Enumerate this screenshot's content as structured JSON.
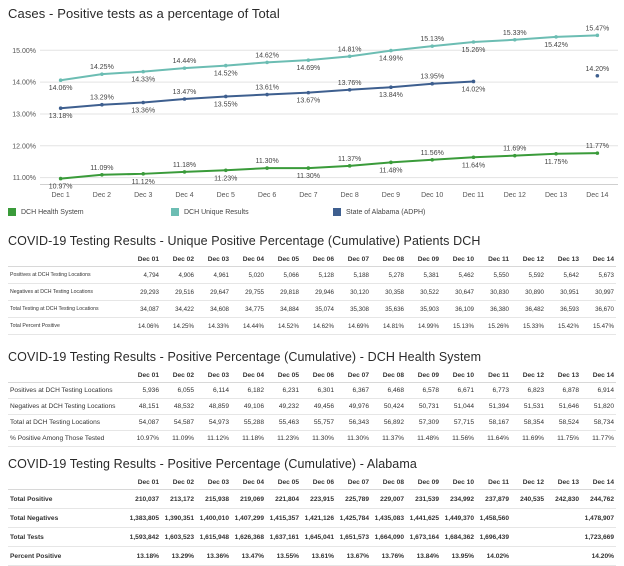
{
  "chart_data": {
    "type": "line",
    "title": "Cases - Positive tests as a percentage of Total",
    "categories": [
      "Dec 1",
      "Dec 2",
      "Dec 3",
      "Dec 4",
      "Dec 5",
      "Dec 6",
      "Dec 7",
      "Dec 8",
      "Dec 9",
      "Dec 10",
      "Dec 11",
      "Dec 12",
      "Dec 13",
      "Dec 14"
    ],
    "y_ticks": [
      "11.00%",
      "12.00%",
      "13.00%",
      "14.00%",
      "15.00%"
    ],
    "ylim": [
      10.8,
      15.7
    ],
    "grid": true,
    "legend_position": "bottom",
    "series": [
      {
        "name": "DCH Health System",
        "color": "#3a9b3a",
        "values": [
          10.97,
          11.09,
          11.12,
          11.18,
          11.23,
          11.3,
          11.3,
          11.37,
          11.48,
          11.56,
          11.64,
          11.69,
          11.75,
          11.77
        ],
        "labels": [
          "10.97%",
          "11.09%",
          "11.12%",
          "11.18%",
          "11.23%",
          "11.30%",
          "11.30%",
          "11.37%",
          "11.48%",
          "11.56%",
          "11.64%",
          "11.69%",
          "11.75%",
          "11.77%"
        ]
      },
      {
        "name": "DCH Unique Results",
        "color": "#6cbdb3",
        "values": [
          14.06,
          14.25,
          14.33,
          14.44,
          14.52,
          14.62,
          14.69,
          14.81,
          14.99,
          15.13,
          15.26,
          15.33,
          15.42,
          15.47
        ],
        "labels": [
          "14.06%",
          "14.25%",
          "14.33%",
          "14.44%",
          "14.52%",
          "14.62%",
          "14.69%",
          "14.81%",
          "14.99%",
          "15.13%",
          "15.26%",
          "15.33%",
          "15.42%",
          "15.47%"
        ]
      },
      {
        "name": "State of Alabama (ADPH)",
        "color": "#3e5f8f",
        "values": [
          13.18,
          13.29,
          13.36,
          13.47,
          13.55,
          13.61,
          13.67,
          13.76,
          13.84,
          13.95,
          14.02,
          null,
          null,
          14.2
        ],
        "labels": [
          "13.18%",
          "13.29%",
          "13.36%",
          "13.47%",
          "13.55%",
          "13.61%",
          "13.67%",
          "13.76%",
          "13.84%",
          "13.95%",
          "14.02%",
          "",
          "",
          "14.20%"
        ]
      }
    ]
  },
  "table1": {
    "title": "COVID-19 Testing Results - Unique Positive Percentage (Cumulative) Patients DCH",
    "headers": [
      "Dec 01",
      "Dec 02",
      "Dec 03",
      "Dec 04",
      "Dec 05",
      "Dec 06",
      "Dec 07",
      "Dec 08",
      "Dec 09",
      "Dec 10",
      "Dec 11",
      "Dec 12",
      "Dec 13",
      "Dec 14"
    ],
    "rows": [
      {
        "label": "Positives at DCH Testing Locations",
        "cells": [
          "4,794",
          "4,906",
          "4,961",
          "5,020",
          "5,066",
          "5,128",
          "5,188",
          "5,278",
          "5,381",
          "5,462",
          "5,550",
          "5,592",
          "5,642",
          "5,673"
        ]
      },
      {
        "label": "Negatives at DCH Testing Locations",
        "cells": [
          "29,293",
          "29,516",
          "29,647",
          "29,755",
          "29,818",
          "29,946",
          "30,120",
          "30,358",
          "30,522",
          "30,647",
          "30,830",
          "30,890",
          "30,951",
          "30,997"
        ]
      },
      {
        "label": "Total Testing at DCH Testing Locations",
        "cells": [
          "34,087",
          "34,422",
          "34,608",
          "34,775",
          "34,884",
          "35,074",
          "35,308",
          "35,636",
          "35,903",
          "36,109",
          "36,380",
          "36,482",
          "36,593",
          "36,670"
        ]
      },
      {
        "label": "Total Percent Positive",
        "cells": [
          "14.06%",
          "14.25%",
          "14.33%",
          "14.44%",
          "14.52%",
          "14.62%",
          "14.69%",
          "14.81%",
          "14.99%",
          "15.13%",
          "15.26%",
          "15.33%",
          "15.42%",
          "15.47%"
        ]
      }
    ]
  },
  "table2": {
    "title": "COVID-19 Testing Results - Positive Percentage (Cumulative) - DCH Health System",
    "headers": [
      "Dec 01",
      "Dec 02",
      "Dec 03",
      "Dec 04",
      "Dec 05",
      "Dec 06",
      "Dec 07",
      "Dec 08",
      "Dec 09",
      "Dec 10",
      "Dec 11",
      "Dec 12",
      "Dec 13",
      "Dec 14"
    ],
    "rows": [
      {
        "label": "Positives at DCH Testing Locations",
        "cells": [
          "5,936",
          "6,055",
          "6,114",
          "6,182",
          "6,231",
          "6,301",
          "6,367",
          "6,468",
          "6,578",
          "6,671",
          "6,773",
          "6,823",
          "6,878",
          "6,914"
        ]
      },
      {
        "label": "Negatives at DCH Testing Locations",
        "cells": [
          "48,151",
          "48,532",
          "48,859",
          "49,106",
          "49,232",
          "49,456",
          "49,976",
          "50,424",
          "50,731",
          "51,044",
          "51,394",
          "51,531",
          "51,646",
          "51,820"
        ]
      },
      {
        "label": "Total at DCH Testing Locations",
        "cells": [
          "54,087",
          "54,587",
          "54,973",
          "55,288",
          "55,463",
          "55,757",
          "56,343",
          "56,892",
          "57,309",
          "57,715",
          "58,167",
          "58,354",
          "58,524",
          "58,734"
        ]
      },
      {
        "label": "% Positive Among Those Tested",
        "cells": [
          "10.97%",
          "11.09%",
          "11.12%",
          "11.18%",
          "11.23%",
          "11.30%",
          "11.30%",
          "11.37%",
          "11.48%",
          "11.56%",
          "11.64%",
          "11.69%",
          "11.75%",
          "11.77%"
        ]
      }
    ]
  },
  "table3": {
    "title": "COVID-19 Testing Results - Positive Percentage (Cumulative) - Alabama",
    "headers": [
      "Dec 01",
      "Dec 02",
      "Dec 03",
      "Dec 04",
      "Dec 05",
      "Dec 06",
      "Dec 07",
      "Dec 08",
      "Dec 09",
      "Dec 10",
      "Dec 11",
      "Dec 12",
      "Dec 13",
      "Dec 14"
    ],
    "rows": [
      {
        "label": "Total Positive",
        "cells": [
          "210,037",
          "213,172",
          "215,938",
          "219,069",
          "221,804",
          "223,915",
          "225,789",
          "229,007",
          "231,539",
          "234,992",
          "237,879",
          "240,535",
          "242,830",
          "244,762"
        ]
      },
      {
        "label": "Total Negatives",
        "cells": [
          "1,383,805",
          "1,390,351",
          "1,400,010",
          "1,407,299",
          "1,415,357",
          "1,421,126",
          "1,425,784",
          "1,435,083",
          "1,441,625",
          "1,449,370",
          "1,458,560",
          "",
          "",
          "1,478,907"
        ]
      },
      {
        "label": "Total Tests",
        "cells": [
          "1,593,842",
          "1,603,523",
          "1,615,948",
          "1,626,368",
          "1,637,161",
          "1,645,041",
          "1,651,573",
          "1,664,090",
          "1,673,164",
          "1,684,362",
          "1,696,439",
          "",
          "",
          "1,723,669"
        ]
      },
      {
        "label": "Percent Positive",
        "cells": [
          "13.18%",
          "13.29%",
          "13.36%",
          "13.47%",
          "13.55%",
          "13.61%",
          "13.67%",
          "13.76%",
          "13.84%",
          "13.95%",
          "14.02%",
          "",
          "",
          "14.20%"
        ]
      }
    ]
  }
}
